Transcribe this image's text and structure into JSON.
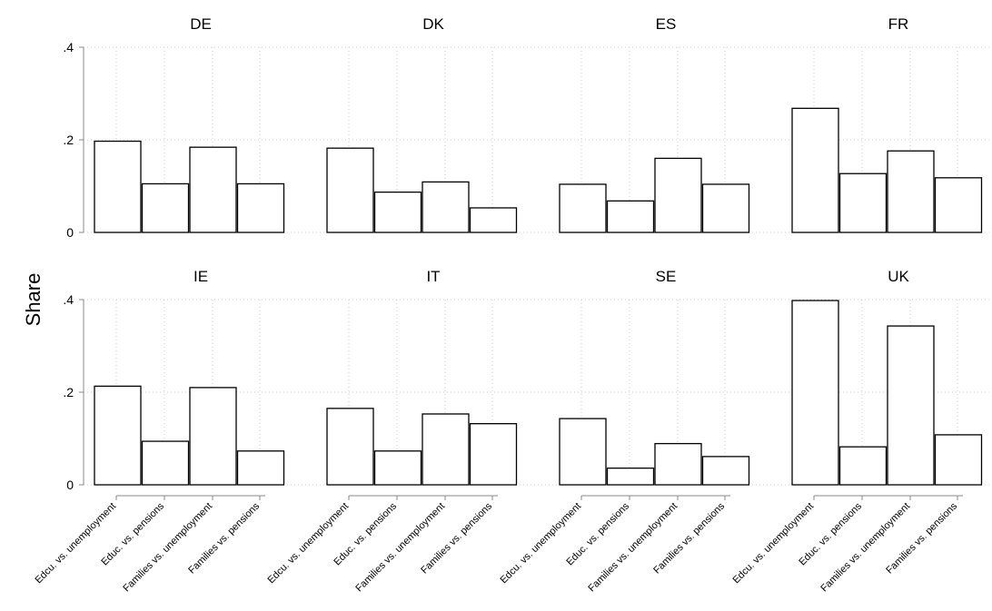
{
  "chart_data": {
    "type": "bar",
    "ylabel": "Share",
    "ylim": [
      0,
      0.4
    ],
    "yticks": [
      {
        "value": 0,
        "label": "0"
      },
      {
        "value": 0.2,
        "label": ".2"
      },
      {
        "value": 0.4,
        "label": ".4"
      }
    ],
    "categories": [
      "Edcu. vs. unemployment",
      "Educ. vs. pensions",
      "Families vs. unemployment",
      "Families vs. pensions"
    ],
    "grid": true,
    "panels": [
      {
        "title": "DE",
        "values": [
          0.197,
          0.105,
          0.184,
          0.105
        ]
      },
      {
        "title": "DK",
        "values": [
          0.182,
          0.087,
          0.109,
          0.053
        ]
      },
      {
        "title": "ES",
        "values": [
          0.104,
          0.068,
          0.16,
          0.104
        ]
      },
      {
        "title": "FR",
        "values": [
          0.268,
          0.127,
          0.176,
          0.118
        ]
      },
      {
        "title": "IE",
        "values": [
          0.213,
          0.094,
          0.21,
          0.073
        ]
      },
      {
        "title": "IT",
        "values": [
          0.165,
          0.073,
          0.153,
          0.132
        ]
      },
      {
        "title": "SE",
        "values": [
          0.143,
          0.036,
          0.089,
          0.061
        ]
      },
      {
        "title": "UK",
        "values": [
          0.398,
          0.082,
          0.343,
          0.108
        ]
      }
    ]
  }
}
